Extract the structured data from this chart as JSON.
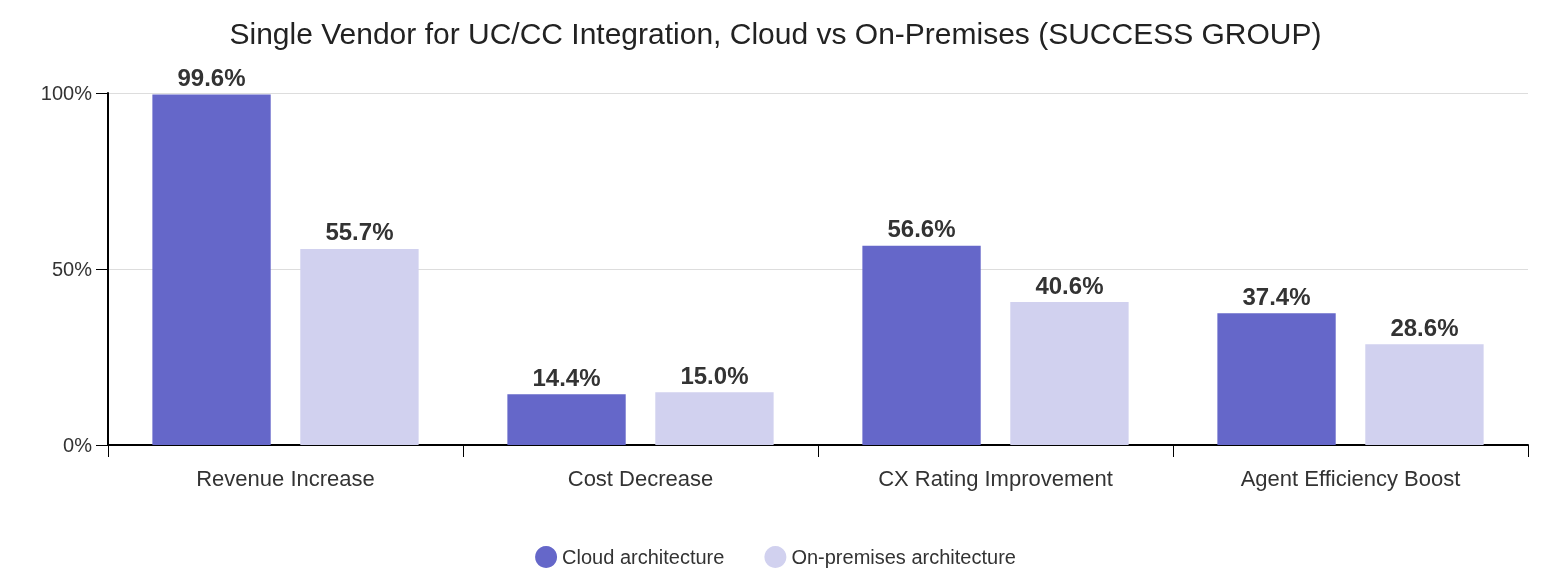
{
  "chart_data": {
    "type": "bar",
    "title": "Single Vendor for UC/CC Integration, Cloud vs On-Premises (SUCCESS GROUP)",
    "categories": [
      "Revenue Increase",
      "Cost Decrease",
      "CX Rating Improvement",
      "Agent Efficiency Boost"
    ],
    "series": [
      {
        "name": "Cloud architecture",
        "color": "#6567c9",
        "values": [
          99.6,
          14.4,
          56.6,
          37.4
        ],
        "value_labels": [
          "99.6%",
          "14.4%",
          "56.6%",
          "37.4%"
        ]
      },
      {
        "name": "On-premises architecture",
        "color": "#d1d1ef",
        "values": [
          55.7,
          15.0,
          40.6,
          28.6
        ],
        "value_labels": [
          "55.7%",
          "15.0%",
          "40.6%",
          "28.6%"
        ]
      }
    ],
    "ylim": [
      0,
      100
    ],
    "yticks": [
      {
        "value": 0,
        "label": "0%"
      },
      {
        "value": 50,
        "label": "50%"
      },
      {
        "value": 100,
        "label": "100%"
      }
    ],
    "grid": "y",
    "legend": "bottom"
  }
}
